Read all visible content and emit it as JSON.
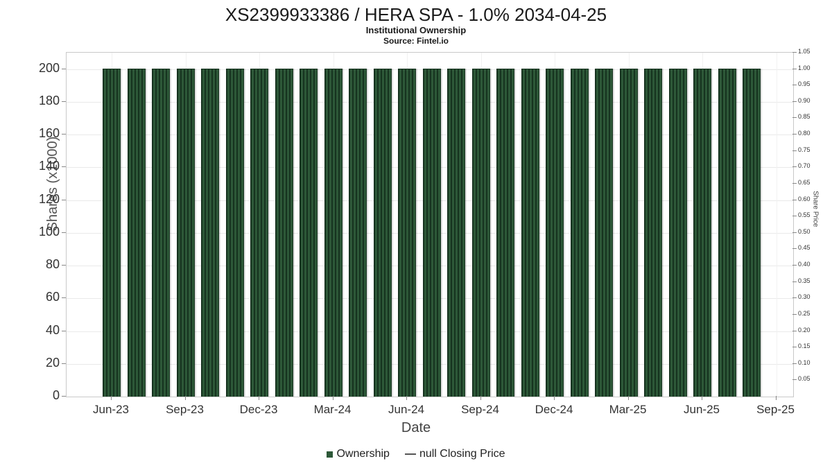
{
  "header": {
    "title": "XS2399933386 / HERA SPA - 1.0% 2034-04-25",
    "subtitle": "Institutional Ownership",
    "source": "Source: Fintel.io"
  },
  "legend": {
    "ownership_label": "Ownership",
    "price_label": "null Closing Price"
  },
  "colors": {
    "bar": "#2d5838",
    "bar_stripe": "#16331f",
    "grid": "#e9e9e9",
    "axis_border": "#c9c9c9",
    "text": "#333333"
  },
  "chart_data": {
    "type": "bar",
    "title": "XS2399933386 / HERA SPA - 1.0% 2034-04-25",
    "subtitle": "Institutional Ownership",
    "source": "Source: Fintel.io",
    "xlabel": "Date",
    "ylabel_left": "Shares (x1000)",
    "ylabel_right": "Share Price",
    "categories": [
      "Jun-23",
      "Jul-23",
      "Aug-23",
      "Sep-23",
      "Oct-23",
      "Nov-23",
      "Dec-23",
      "Jan-24",
      "Feb-24",
      "Mar-24",
      "Apr-24",
      "May-24",
      "Jun-24",
      "Jul-24",
      "Aug-24",
      "Sep-24",
      "Oct-24",
      "Nov-24",
      "Dec-24",
      "Jan-25",
      "Feb-25",
      "Mar-25",
      "Apr-25",
      "May-25",
      "Jun-25",
      "Jul-25",
      "Aug-25"
    ],
    "values": [
      200,
      200,
      200,
      200,
      200,
      200,
      200,
      200,
      200,
      200,
      200,
      200,
      200,
      200,
      200,
      200,
      200,
      200,
      200,
      200,
      200,
      200,
      200,
      200,
      200,
      200,
      200
    ],
    "series_name": "Ownership",
    "x_tick_labels": [
      "Jun-23",
      "Sep-23",
      "Dec-23",
      "Mar-24",
      "Jun-24",
      "Sep-24",
      "Dec-24",
      "Mar-25",
      "Jun-25",
      "Sep-25"
    ],
    "y_left_ticks": [
      0,
      20,
      40,
      60,
      80,
      100,
      120,
      140,
      160,
      180,
      200
    ],
    "y_right_ticks": [
      "1.05",
      "1.00",
      "0.95",
      "0.90",
      "0.85",
      "0.80",
      "0.75",
      "0.70",
      "0.65",
      "0.60",
      "0.55",
      "0.50",
      "0.45",
      "0.40",
      "0.35",
      "0.30",
      "0.25",
      "0.20",
      "0.15",
      "0.10",
      "0.05"
    ],
    "ylim_left": [
      0,
      210
    ],
    "ylim_right": [
      0,
      1.05
    ],
    "grid": true,
    "legend_position": "bottom"
  }
}
